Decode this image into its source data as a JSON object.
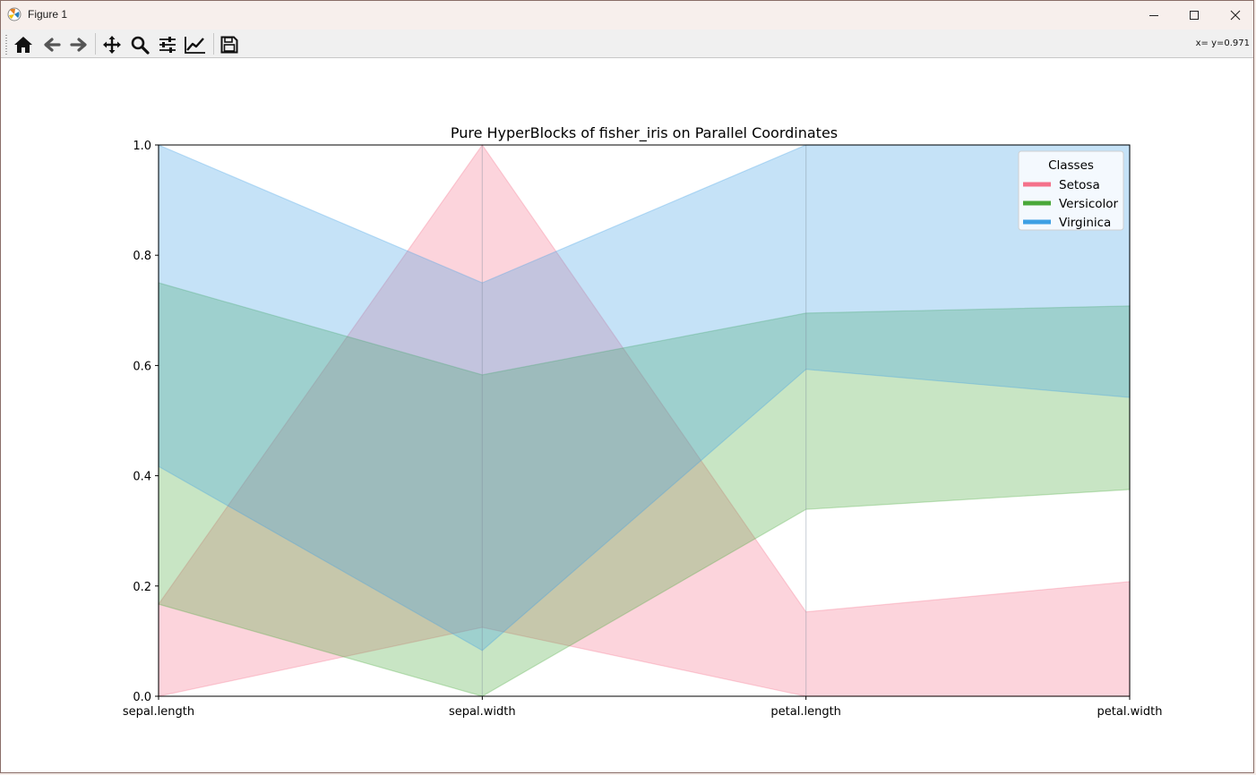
{
  "window": {
    "title": "Figure 1"
  },
  "toolbar": {
    "buttons": [
      {
        "name": "home-button",
        "icon": "home-icon",
        "tooltip": "Reset original view"
      },
      {
        "name": "back-button",
        "icon": "arrow-left-icon",
        "tooltip": "Back"
      },
      {
        "name": "forward-button",
        "icon": "arrow-right-icon",
        "tooltip": "Forward"
      },
      {
        "name": "pan-button",
        "icon": "move-arrows-icon",
        "tooltip": "Pan"
      },
      {
        "name": "zoom-button",
        "icon": "magnifier-icon",
        "tooltip": "Zoom"
      },
      {
        "name": "configure-subplots-button",
        "icon": "sliders-icon",
        "tooltip": "Configure subplots"
      },
      {
        "name": "edit-axis-button",
        "icon": "line-chart-icon",
        "tooltip": "Edit axis"
      },
      {
        "name": "save-button",
        "icon": "floppy-disk-icon",
        "tooltip": "Save"
      }
    ],
    "coords_text": "x= y=0.971"
  },
  "chart_data": {
    "type": "parallel-coordinates",
    "title": "Pure HyperBlocks of fisher_iris on Parallel Coordinates",
    "axes": [
      "sepal.length",
      "sepal.width",
      "petal.length",
      "petal.width"
    ],
    "ylim": [
      0.0,
      1.0
    ],
    "yticks": [
      "0.0",
      "0.2",
      "0.4",
      "0.6",
      "0.8",
      "1.0"
    ],
    "legend": {
      "title": "Classes",
      "position": "top-right"
    },
    "series": [
      {
        "name": "Setosa",
        "color": "#f4728b",
        "blocks": [
          {
            "min": [
              0.0,
              0.125,
              0.0,
              0.0
            ],
            "max": [
              0.167,
              1.0,
              0.153,
              0.208
            ]
          }
        ]
      },
      {
        "name": "Versicolor",
        "color": "#4aa83a",
        "blocks": [
          {
            "min": [
              0.167,
              0.0,
              0.339,
              0.375
            ],
            "max": [
              0.75,
              0.583,
              0.695,
              0.708
            ]
          }
        ]
      },
      {
        "name": "Virginica",
        "color": "#3ea0e4",
        "blocks": [
          {
            "min": [
              0.417,
              0.083,
              0.593,
              0.542
            ],
            "max": [
              1.0,
              0.75,
              1.0,
              1.0
            ]
          }
        ]
      }
    ]
  }
}
